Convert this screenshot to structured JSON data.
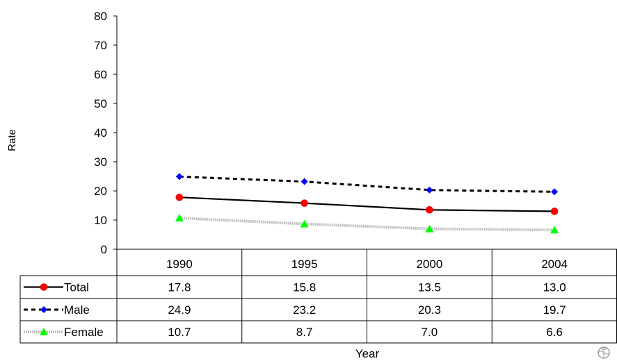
{
  "chart_data": {
    "type": "line",
    "categories": [
      "1990",
      "1995",
      "2000",
      "2004"
    ],
    "series": [
      {
        "name": "Total",
        "values": [
          17.8,
          15.8,
          13.5,
          13.0
        ],
        "color": "#000000",
        "marker": "circle",
        "marker_color": "#ff0000",
        "line_style": "solid"
      },
      {
        "name": "Male",
        "values": [
          24.9,
          23.2,
          20.3,
          19.7
        ],
        "color": "#000000",
        "marker": "diamond",
        "marker_color": "#0000ff",
        "line_style": "dashed"
      },
      {
        "name": "Female",
        "values": [
          10.7,
          8.7,
          7.0,
          6.6
        ],
        "color": "#c0c0c0",
        "marker": "triangle",
        "marker_color": "#00ff00",
        "line_style": "dotted"
      }
    ],
    "value_labels": [
      [
        "17.8",
        "15.8",
        "13.5",
        "13.0"
      ],
      [
        "24.9",
        "23.2",
        "20.3",
        "19.7"
      ],
      [
        "10.7",
        "8.7",
        "7.0",
        "6.6"
      ]
    ],
    "xlabel": "Year",
    "ylabel": "Rate",
    "ylim": [
      0,
      80
    ],
    "yticks": [
      "0",
      "10",
      "20",
      "30",
      "40",
      "50",
      "60",
      "70",
      "80"
    ],
    "grid": false,
    "legend": "data table below chart"
  }
}
